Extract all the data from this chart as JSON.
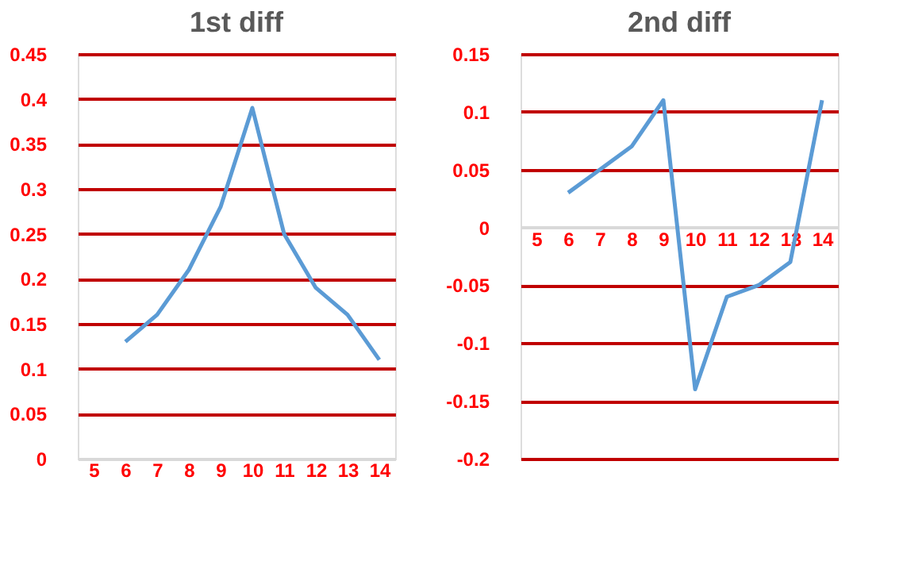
{
  "chart_data": [
    {
      "type": "line",
      "title": "1st diff",
      "categories": [
        "5",
        "6",
        "7",
        "8",
        "9",
        "10",
        "11",
        "12",
        "13",
        "14"
      ],
      "values": [
        null,
        0.13,
        0.16,
        0.21,
        0.28,
        0.39,
        0.25,
        0.19,
        0.16,
        0.11
      ],
      "color": "#5b9bd5",
      "ylim": [
        0,
        0.45
      ],
      "yticks": [
        0,
        0.05,
        0.1,
        0.15,
        0.2,
        0.25,
        0.3,
        0.35,
        0.4,
        0.45
      ],
      "grid": "y"
    },
    {
      "type": "line",
      "title": "2nd diff",
      "categories": [
        "5",
        "6",
        "7",
        "8",
        "9",
        "10",
        "11",
        "12",
        "13",
        "14"
      ],
      "values": [
        null,
        0.03,
        0.05,
        0.07,
        0.11,
        -0.14,
        -0.06,
        -0.05,
        -0.03,
        0.11
      ],
      "color": "#5b9bd5",
      "ylim": [
        -0.2,
        0.15
      ],
      "yticks": [
        -0.2,
        -0.15,
        -0.1,
        -0.05,
        0,
        0.05,
        0.1,
        0.15
      ],
      "grid": "y"
    }
  ]
}
